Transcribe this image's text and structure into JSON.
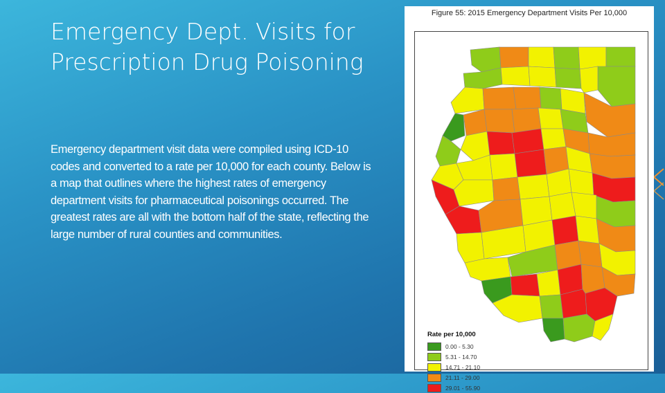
{
  "slide": {
    "title": "Emergency Dept. Visits for Prescription Drug Poisoning",
    "body": "Emergency department visit data were compiled using ICD-10 codes and converted to a rate per 10,000 for each county. Below is a map that outlines where the highest rates of emergency department visits for pharmaceutical poisonings occurred. The greatest rates are all with the bottom half of the state, reflecting the large number of rural counties and communities."
  },
  "map": {
    "caption": "Figure 55: 2015 Emergency Department Visits Per 10,000",
    "legend": {
      "title": "Rate per 10,000",
      "items": [
        {
          "label": "0.00 - 5.30",
          "color": "#3a9a1e"
        },
        {
          "label": "5.31 - 14.70",
          "color": "#8fcc1a"
        },
        {
          "label": "14.71 - 21.10",
          "color": "#f2f200"
        },
        {
          "label": "21.11 - 29.00",
          "color": "#f08a16"
        },
        {
          "label": "29.01 - 55.90",
          "color": "#ee1c1c"
        }
      ]
    }
  }
}
